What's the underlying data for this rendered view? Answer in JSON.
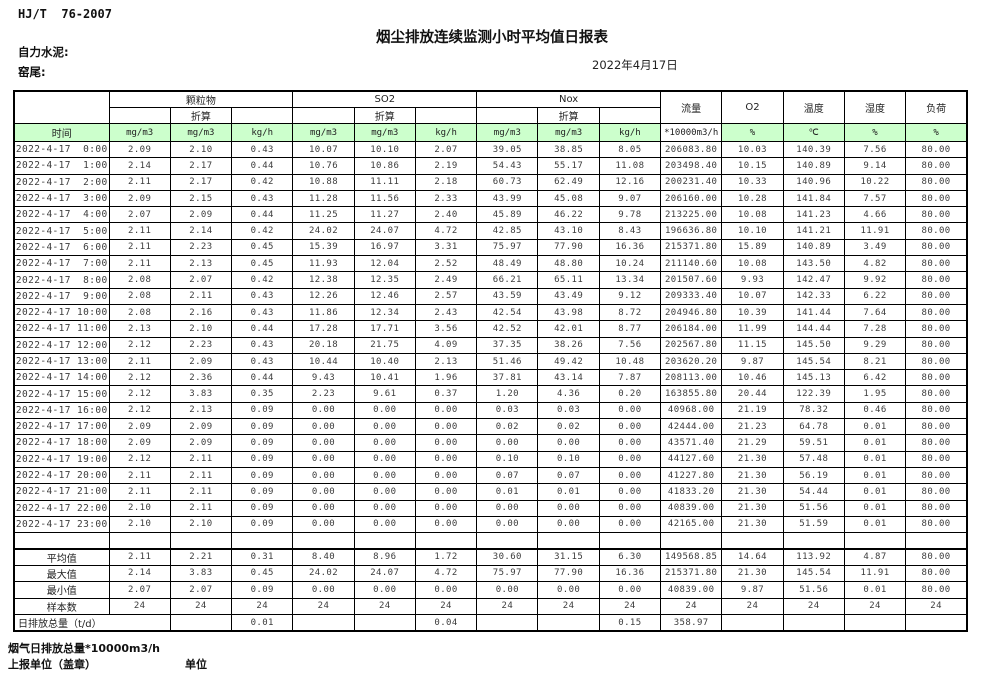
{
  "page": {
    "doc_code": "HJ/T  76-2007",
    "title": "烟尘排放连续监测小时平均值日报表",
    "company_label": "自力水泥:",
    "site_label": "窑尾:",
    "date": "2022年4月17日",
    "footer_flow_note": "烟气日排放总量*10000m3/h",
    "footer_report_unit": "上报单位（盖章）",
    "footer_unit_label": "单位",
    "colors": {
      "unit_row_green": "#ccffcc",
      "border": "#000000"
    }
  },
  "table": {
    "time_header": "时间",
    "groups": [
      {
        "label": "颗粒物",
        "sub": [
          "",
          "折算",
          ""
        ],
        "units": [
          "mg/m3",
          "mg/m3",
          "kg/h"
        ]
      },
      {
        "label": "SO2",
        "sub": [
          "",
          "折算",
          ""
        ],
        "units": [
          "mg/m3",
          "mg/m3",
          "kg/h"
        ]
      },
      {
        "label": "Nox",
        "sub": [
          "",
          "折算",
          ""
        ],
        "units": [
          "mg/m3",
          "mg/m3",
          "kg/h"
        ]
      }
    ],
    "single_columns": [
      {
        "label": "流量",
        "unit": "*10000m3/h",
        "unit_green": false
      },
      {
        "label": "O2",
        "unit": "%",
        "unit_green": true
      },
      {
        "label": "温度",
        "unit": "℃",
        "unit_green": true
      },
      {
        "label": "湿度",
        "unit": "%",
        "unit_green": true
      },
      {
        "label": "负荷",
        "unit": "%",
        "unit_green": true
      }
    ],
    "rows": [
      {
        "time": "2022-4-17  0:00",
        "values": [
          "2.09",
          "2.10",
          "0.43",
          "10.07",
          "10.10",
          "2.07",
          "39.05",
          "38.85",
          "8.05",
          "206083.80",
          "10.03",
          "140.39",
          "7.56",
          "80.00"
        ]
      },
      {
        "time": "2022-4-17  1:00",
        "values": [
          "2.14",
          "2.17",
          "0.44",
          "10.76",
          "10.86",
          "2.19",
          "54.43",
          "55.17",
          "11.08",
          "203498.40",
          "10.15",
          "140.89",
          "9.14",
          "80.00"
        ]
      },
      {
        "time": "2022-4-17  2:00",
        "values": [
          "2.11",
          "2.17",
          "0.42",
          "10.88",
          "11.11",
          "2.18",
          "60.73",
          "62.49",
          "12.16",
          "200231.40",
          "10.33",
          "140.96",
          "10.22",
          "80.00"
        ]
      },
      {
        "time": "2022-4-17  3:00",
        "values": [
          "2.09",
          "2.15",
          "0.43",
          "11.28",
          "11.56",
          "2.33",
          "43.99",
          "45.08",
          "9.07",
          "206160.00",
          "10.28",
          "141.84",
          "7.57",
          "80.00"
        ]
      },
      {
        "time": "2022-4-17  4:00",
        "values": [
          "2.07",
          "2.09",
          "0.44",
          "11.25",
          "11.27",
          "2.40",
          "45.89",
          "46.22",
          "9.78",
          "213225.00",
          "10.08",
          "141.23",
          "4.66",
          "80.00"
        ]
      },
      {
        "time": "2022-4-17  5:00",
        "values": [
          "2.11",
          "2.14",
          "0.42",
          "24.02",
          "24.07",
          "4.72",
          "42.85",
          "43.10",
          "8.43",
          "196636.80",
          "10.10",
          "141.21",
          "11.91",
          "80.00"
        ]
      },
      {
        "time": "2022-4-17  6:00",
        "values": [
          "2.11",
          "2.23",
          "0.45",
          "15.39",
          "16.97",
          "3.31",
          "75.97",
          "77.90",
          "16.36",
          "215371.80",
          "15.89",
          "140.89",
          "3.49",
          "80.00"
        ]
      },
      {
        "time": "2022-4-17  7:00",
        "values": [
          "2.11",
          "2.13",
          "0.45",
          "11.93",
          "12.04",
          "2.52",
          "48.49",
          "48.80",
          "10.24",
          "211140.60",
          "10.08",
          "143.50",
          "4.82",
          "80.00"
        ]
      },
      {
        "time": "2022-4-17  8:00",
        "values": [
          "2.08",
          "2.07",
          "0.42",
          "12.38",
          "12.35",
          "2.49",
          "66.21",
          "65.11",
          "13.34",
          "201507.60",
          "9.93",
          "142.47",
          "9.92",
          "80.00"
        ]
      },
      {
        "time": "2022-4-17  9:00",
        "values": [
          "2.08",
          "2.11",
          "0.43",
          "12.26",
          "12.46",
          "2.57",
          "43.59",
          "43.49",
          "9.12",
          "209333.40",
          "10.07",
          "142.33",
          "6.22",
          "80.00"
        ]
      },
      {
        "time": "2022-4-17 10:00",
        "values": [
          "2.08",
          "2.16",
          "0.43",
          "11.86",
          "12.34",
          "2.43",
          "42.54",
          "43.98",
          "8.72",
          "204946.80",
          "10.39",
          "141.44",
          "7.64",
          "80.00"
        ]
      },
      {
        "time": "2022-4-17 11:00",
        "values": [
          "2.13",
          "2.10",
          "0.44",
          "17.28",
          "17.71",
          "3.56",
          "42.52",
          "42.01",
          "8.77",
          "206184.00",
          "11.99",
          "144.44",
          "7.28",
          "80.00"
        ]
      },
      {
        "time": "2022-4-17 12:00",
        "values": [
          "2.12",
          "2.23",
          "0.43",
          "20.18",
          "21.75",
          "4.09",
          "37.35",
          "38.26",
          "7.56",
          "202567.80",
          "11.15",
          "145.50",
          "9.29",
          "80.00"
        ]
      },
      {
        "time": "2022-4-17 13:00",
        "values": [
          "2.11",
          "2.09",
          "0.43",
          "10.44",
          "10.40",
          "2.13",
          "51.46",
          "49.42",
          "10.48",
          "203620.20",
          "9.87",
          "145.54",
          "8.21",
          "80.00"
        ]
      },
      {
        "time": "2022-4-17 14:00",
        "values": [
          "2.12",
          "2.36",
          "0.44",
          "9.43",
          "10.41",
          "1.96",
          "37.81",
          "43.14",
          "7.87",
          "208113.00",
          "10.46",
          "145.13",
          "6.42",
          "80.00"
        ]
      },
      {
        "time": "2022-4-17 15:00",
        "values": [
          "2.12",
          "3.83",
          "0.35",
          "2.23",
          "9.61",
          "0.37",
          "1.20",
          "4.36",
          "0.20",
          "163855.80",
          "20.44",
          "122.39",
          "1.95",
          "80.00"
        ]
      },
      {
        "time": "2022-4-17 16:00",
        "values": [
          "2.12",
          "2.13",
          "0.09",
          "0.00",
          "0.00",
          "0.00",
          "0.03",
          "0.03",
          "0.00",
          "40968.00",
          "21.19",
          "78.32",
          "0.46",
          "80.00"
        ]
      },
      {
        "time": "2022-4-17 17:00",
        "values": [
          "2.09",
          "2.09",
          "0.09",
          "0.00",
          "0.00",
          "0.00",
          "0.02",
          "0.02",
          "0.00",
          "42444.00",
          "21.23",
          "64.78",
          "0.01",
          "80.00"
        ]
      },
      {
        "time": "2022-4-17 18:00",
        "values": [
          "2.09",
          "2.09",
          "0.09",
          "0.00",
          "0.00",
          "0.00",
          "0.00",
          "0.00",
          "0.00",
          "43571.40",
          "21.29",
          "59.51",
          "0.01",
          "80.00"
        ]
      },
      {
        "time": "2022-4-17 19:00",
        "values": [
          "2.12",
          "2.11",
          "0.09",
          "0.00",
          "0.00",
          "0.00",
          "0.10",
          "0.10",
          "0.00",
          "44127.60",
          "21.30",
          "57.48",
          "0.01",
          "80.00"
        ]
      },
      {
        "time": "2022-4-17 20:00",
        "values": [
          "2.11",
          "2.11",
          "0.09",
          "0.00",
          "0.00",
          "0.00",
          "0.07",
          "0.07",
          "0.00",
          "41227.80",
          "21.30",
          "56.19",
          "0.01",
          "80.00"
        ]
      },
      {
        "time": "2022-4-17 21:00",
        "values": [
          "2.11",
          "2.11",
          "0.09",
          "0.00",
          "0.00",
          "0.00",
          "0.01",
          "0.01",
          "0.00",
          "41833.20",
          "21.30",
          "54.44",
          "0.01",
          "80.00"
        ]
      },
      {
        "time": "2022-4-17 22:00",
        "values": [
          "2.10",
          "2.11",
          "0.09",
          "0.00",
          "0.00",
          "0.00",
          "0.00",
          "0.00",
          "0.00",
          "40839.00",
          "21.30",
          "51.56",
          "0.01",
          "80.00"
        ]
      },
      {
        "time": "2022-4-17 23:00",
        "values": [
          "2.10",
          "2.10",
          "0.09",
          "0.00",
          "0.00",
          "0.00",
          "0.00",
          "0.00",
          "0.00",
          "42165.00",
          "21.30",
          "51.59",
          "0.01",
          "80.00"
        ]
      }
    ],
    "summary": [
      {
        "label": "平均值",
        "values": [
          "2.11",
          "2.21",
          "0.31",
          "8.40",
          "8.96",
          "1.72",
          "30.60",
          "31.15",
          "6.30",
          "149568.85",
          "14.64",
          "113.92",
          "4.87",
          "80.00"
        ]
      },
      {
        "label": "最大值",
        "values": [
          "2.14",
          "3.83",
          "0.45",
          "24.02",
          "24.07",
          "4.72",
          "75.97",
          "77.90",
          "16.36",
          "215371.80",
          "21.30",
          "145.54",
          "11.91",
          "80.00"
        ]
      },
      {
        "label": "最小值",
        "values": [
          "2.07",
          "2.07",
          "0.09",
          "0.00",
          "0.00",
          "0.00",
          "0.00",
          "0.00",
          "0.00",
          "40839.00",
          "9.87",
          "51.56",
          "0.01",
          "80.00"
        ]
      },
      {
        "label": "样本数",
        "values": [
          "24",
          "24",
          "24",
          "24",
          "24",
          "24",
          "24",
          "24",
          "24",
          "24",
          "24",
          "24",
          "24",
          "24"
        ]
      }
    ],
    "daily_total": {
      "label": "日排放总量（t/d）",
      "values": [
        "",
        "0.01",
        "",
        "",
        "0.04",
        "",
        "",
        "0.15",
        "358.97",
        "",
        "",
        "",
        ""
      ]
    }
  }
}
